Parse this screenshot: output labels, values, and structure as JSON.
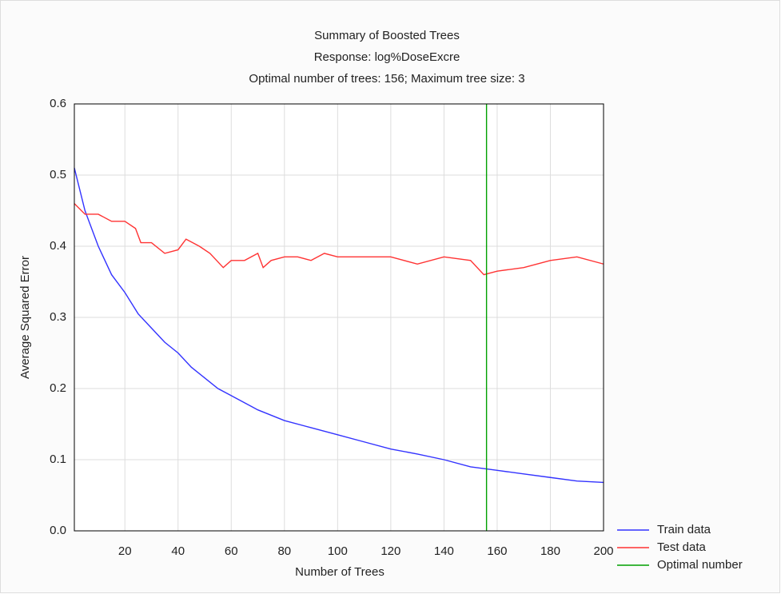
{
  "chart_data": {
    "type": "line",
    "title": "Summary of Boosted Trees",
    "subtitle": "Response: log%DoseExcre",
    "annotation": "Optimal number of trees: 156; Maximum tree size: 3",
    "x_label": "Number of Trees",
    "y_label": "Average Squared Error",
    "xlim": [
      1,
      200
    ],
    "ylim": [
      0,
      0.6
    ],
    "xticks": [
      20,
      40,
      60,
      80,
      100,
      120,
      140,
      160,
      180,
      200
    ],
    "yticks": [
      {
        "value": 0,
        "label": "0.0"
      },
      0.1,
      0.2,
      0.3,
      0.4,
      0.5,
      0.6
    ],
    "grid": true,
    "legend": "bottom-right",
    "series": [
      {
        "name": "Train data",
        "color": "#3333ff",
        "x": [
          1,
          5,
          10,
          15,
          20,
          25,
          30,
          35,
          40,
          45,
          50,
          55,
          60,
          70,
          80,
          90,
          100,
          110,
          120,
          130,
          140,
          150,
          160,
          170,
          180,
          190,
          200
        ],
        "values": [
          0.51,
          0.45,
          0.4,
          0.36,
          0.335,
          0.305,
          0.285,
          0.265,
          0.25,
          0.23,
          0.215,
          0.2,
          0.19,
          0.17,
          0.155,
          0.145,
          0.135,
          0.125,
          0.115,
          0.108,
          0.1,
          0.09,
          0.085,
          0.08,
          0.075,
          0.07,
          0.068
        ]
      },
      {
        "name": "Test data",
        "color": "#ff3333",
        "x": [
          1,
          5,
          10,
          15,
          20,
          24,
          26,
          30,
          35,
          40,
          43,
          48,
          52,
          57,
          60,
          65,
          70,
          72,
          75,
          80,
          85,
          90,
          95,
          100,
          110,
          120,
          130,
          140,
          150,
          155,
          160,
          170,
          180,
          190,
          200
        ],
        "values": [
          0.46,
          0.445,
          0.445,
          0.435,
          0.435,
          0.425,
          0.405,
          0.405,
          0.39,
          0.395,
          0.41,
          0.4,
          0.39,
          0.37,
          0.38,
          0.38,
          0.39,
          0.37,
          0.38,
          0.385,
          0.385,
          0.38,
          0.39,
          0.385,
          0.385,
          0.385,
          0.375,
          0.385,
          0.38,
          0.36,
          0.365,
          0.37,
          0.38,
          0.385,
          0.375
        ]
      }
    ],
    "vline": {
      "name": "Optimal number",
      "value": 156,
      "color": "#00a000"
    }
  }
}
